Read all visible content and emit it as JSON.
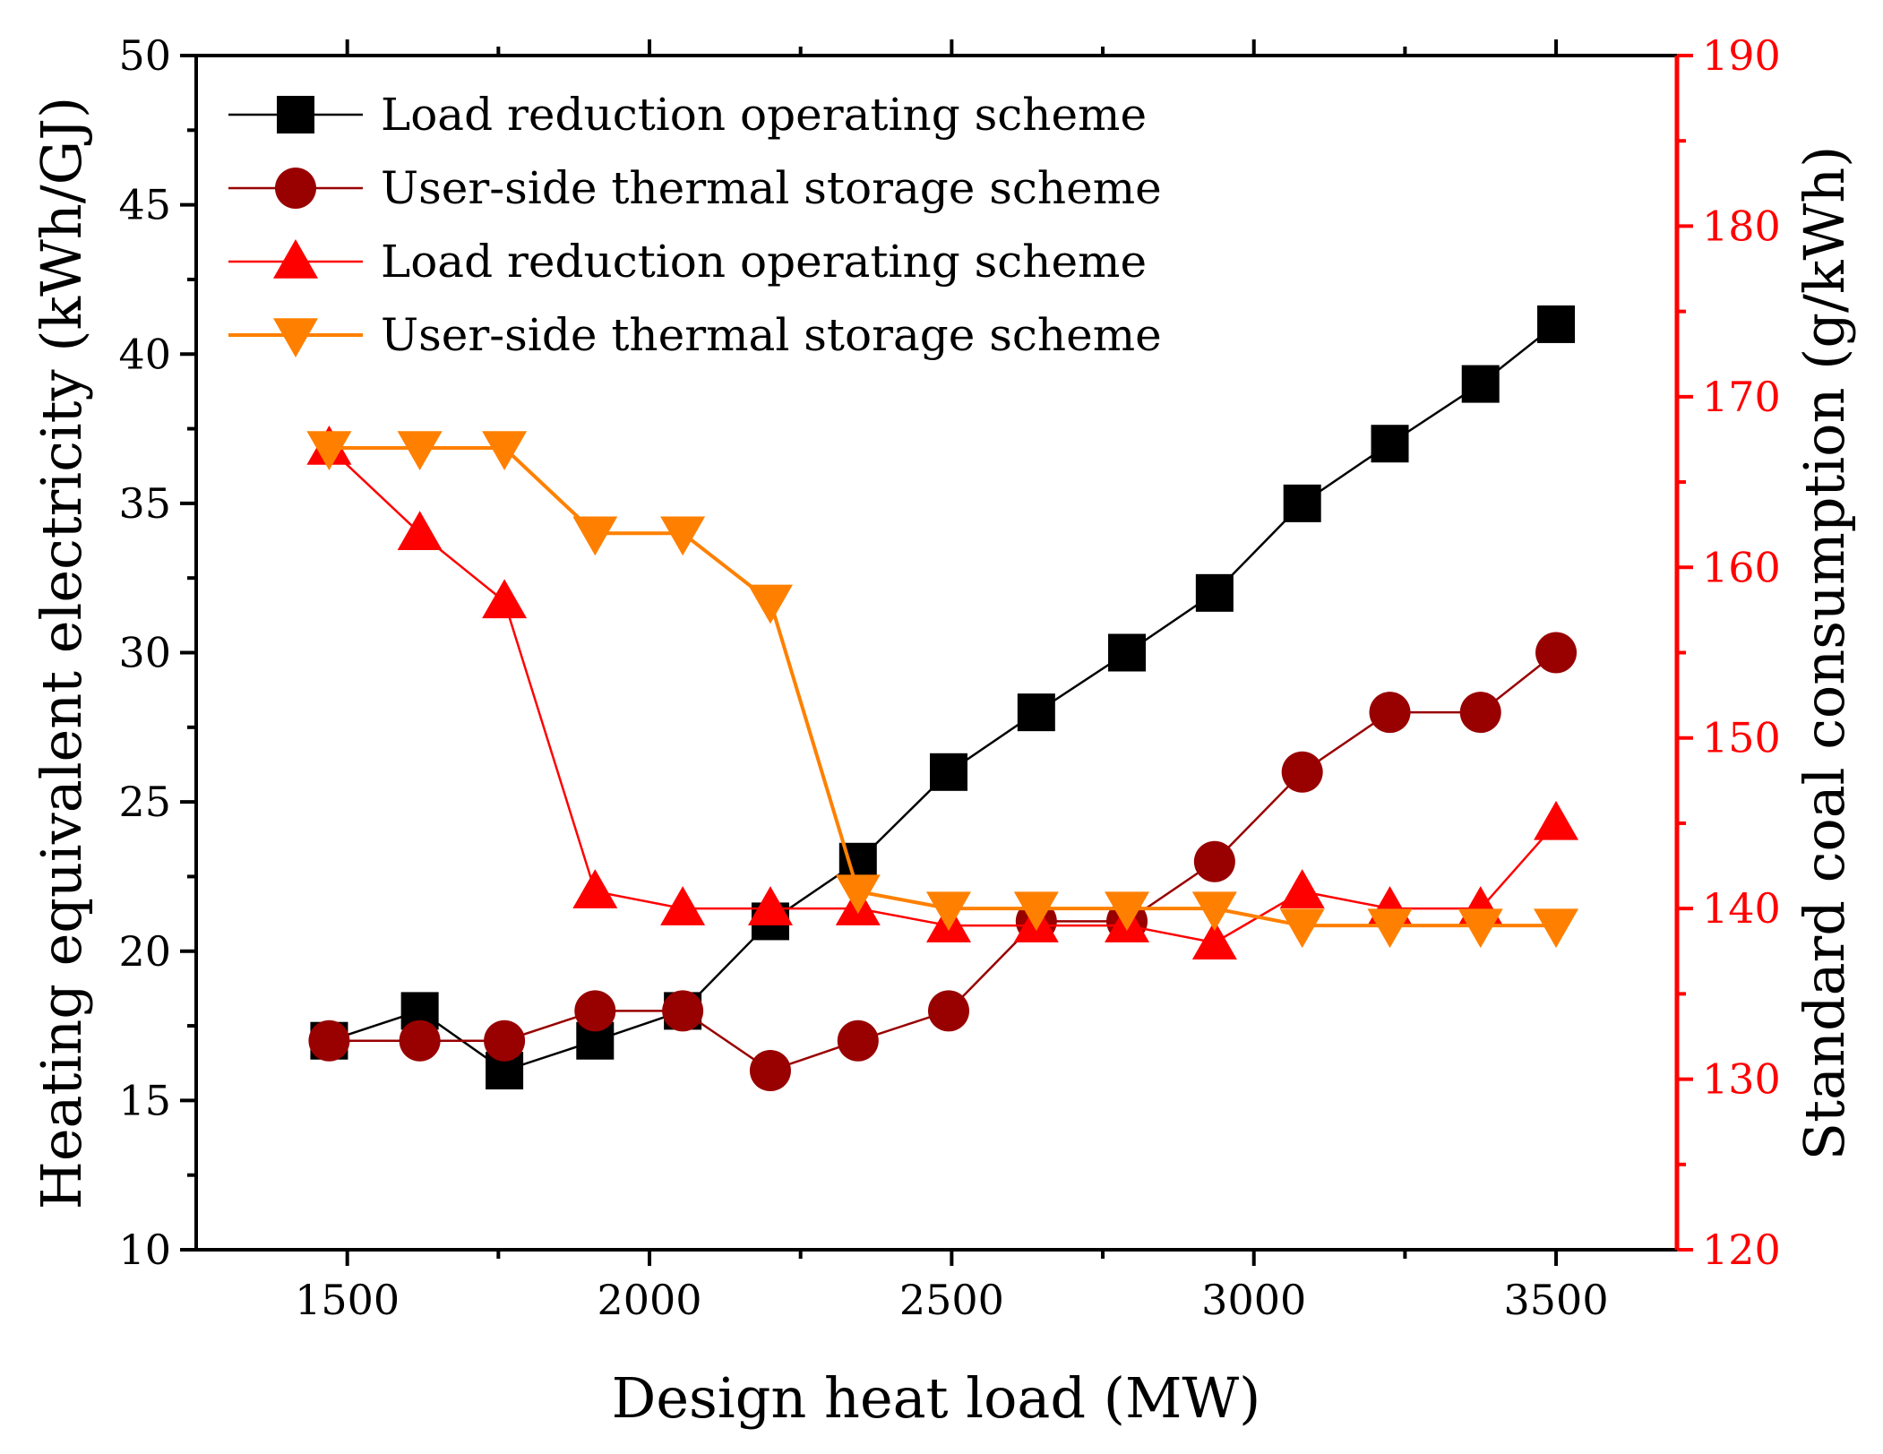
{
  "chart_data": {
    "type": "line",
    "xlabel": "Design heat load (MW)",
    "ylabel_left": "Heating equivalent electricity (kWh/GJ)",
    "ylabel_right": "Standard coal consumption (g/kWh)",
    "xlim": [
      1250,
      3700
    ],
    "ylim_left": [
      10,
      50
    ],
    "ylim_right": [
      120,
      190
    ],
    "x_ticks": [
      1500,
      2000,
      2500,
      3000,
      3500
    ],
    "y_left_ticks": [
      10,
      15,
      20,
      25,
      30,
      35,
      40,
      45,
      50
    ],
    "y_right_ticks": [
      120,
      130,
      140,
      150,
      160,
      170,
      180,
      190
    ],
    "right_axis_color": "#ff0000",
    "legend_position": "top-left",
    "x": [
      1470,
      1620,
      1760,
      1910,
      2055,
      2200,
      2345,
      2495,
      2640,
      2790,
      2935,
      3080,
      3225,
      3375,
      3500
    ],
    "series": [
      {
        "name": "Load reduction operating scheme",
        "axis": "left",
        "color": "#000000",
        "marker": "square",
        "values": [
          17,
          18,
          16,
          17,
          18,
          21,
          23,
          26,
          28,
          30,
          32,
          35,
          37,
          39,
          41
        ]
      },
      {
        "name": "User-side thermal storage scheme",
        "axis": "left",
        "color": "#990000",
        "marker": "circle",
        "values": [
          17,
          17,
          17,
          18,
          18,
          16,
          17,
          18,
          21,
          21,
          23,
          26,
          28,
          28,
          30
        ]
      },
      {
        "name": "Load reduction operating scheme",
        "axis": "right",
        "color": "#ff0000",
        "marker": "triangle-up",
        "values": [
          167,
          162,
          158,
          141,
          140,
          140,
          140,
          139,
          139,
          139,
          138,
          141,
          140,
          140,
          145
        ]
      },
      {
        "name": "User-side thermal storage scheme",
        "axis": "right",
        "color": "#ff8000",
        "marker": "triangle-down",
        "values": [
          167,
          167,
          167,
          162,
          162,
          158,
          141,
          140,
          140,
          140,
          140,
          139,
          139,
          139,
          139
        ]
      }
    ]
  }
}
